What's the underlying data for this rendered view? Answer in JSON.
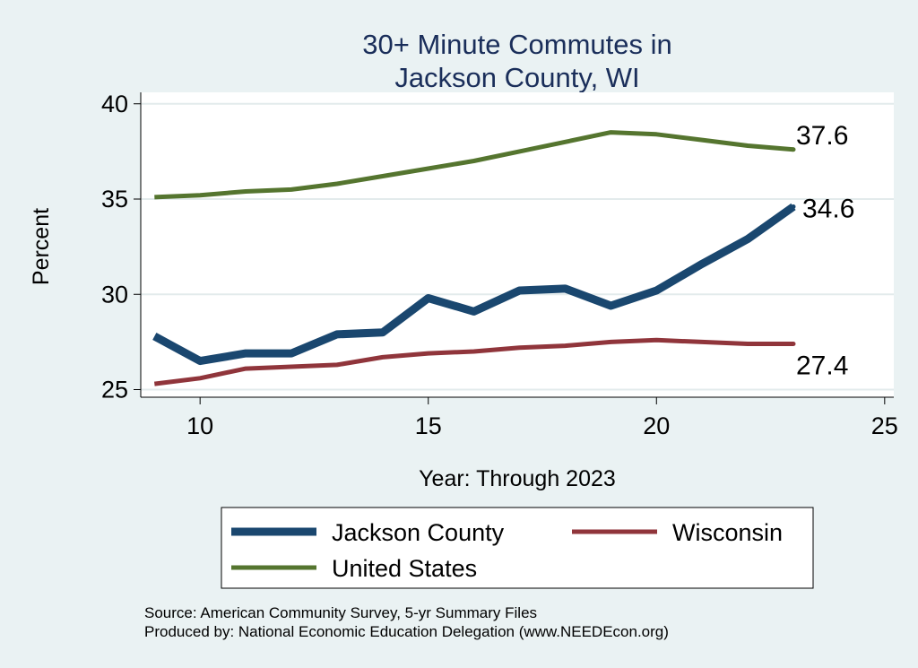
{
  "chart_data": {
    "type": "line",
    "title": [
      "30+ Minute Commutes in",
      "Jackson County, WI"
    ],
    "xlabel": "Year: Through 2023",
    "ylabel": "Percent",
    "xlim": [
      8.7,
      25.2
    ],
    "ylim": [
      24.6,
      40.6
    ],
    "xticks": [
      10,
      15,
      20,
      25
    ],
    "yticks": [
      25,
      30,
      35,
      40
    ],
    "grid": true,
    "legend_position": "bottom",
    "series": [
      {
        "name": "Jackson County",
        "color": "#1a476f",
        "width": 9,
        "x": [
          9,
          10,
          11,
          12,
          13,
          14,
          15,
          16,
          17,
          18,
          19,
          20,
          21,
          22,
          23
        ],
        "y": [
          27.8,
          26.5,
          26.9,
          26.9,
          27.9,
          28.0,
          29.8,
          29.1,
          30.2,
          30.3,
          29.4,
          30.2,
          31.6,
          32.9,
          34.6
        ],
        "end_label": "34.6"
      },
      {
        "name": "Wisconsin",
        "color": "#90353b",
        "width": 5,
        "x": [
          9,
          10,
          11,
          12,
          13,
          14,
          15,
          16,
          17,
          18,
          19,
          20,
          21,
          22,
          23
        ],
        "y": [
          25.3,
          25.6,
          26.1,
          26.2,
          26.3,
          26.7,
          26.9,
          27.0,
          27.2,
          27.3,
          27.5,
          27.6,
          27.5,
          27.4,
          27.4
        ],
        "end_label": "27.4"
      },
      {
        "name": "United States",
        "color": "#55752f",
        "width": 5,
        "x": [
          9,
          10,
          11,
          12,
          13,
          14,
          15,
          16,
          17,
          18,
          19,
          20,
          21,
          22,
          23
        ],
        "y": [
          35.1,
          35.2,
          35.4,
          35.5,
          35.8,
          36.2,
          36.6,
          37.0,
          37.5,
          38.0,
          38.5,
          38.4,
          38.1,
          37.8,
          37.6
        ],
        "end_label": "37.6"
      }
    ],
    "legend": {
      "items": [
        "Jackson County",
        "Wisconsin",
        "United States"
      ]
    },
    "source": [
      "Source: American Community Survey, 5-yr Summary Files",
      "Produced by: National Economic Education Delegation (www.NEEDEcon.org)"
    ]
  }
}
